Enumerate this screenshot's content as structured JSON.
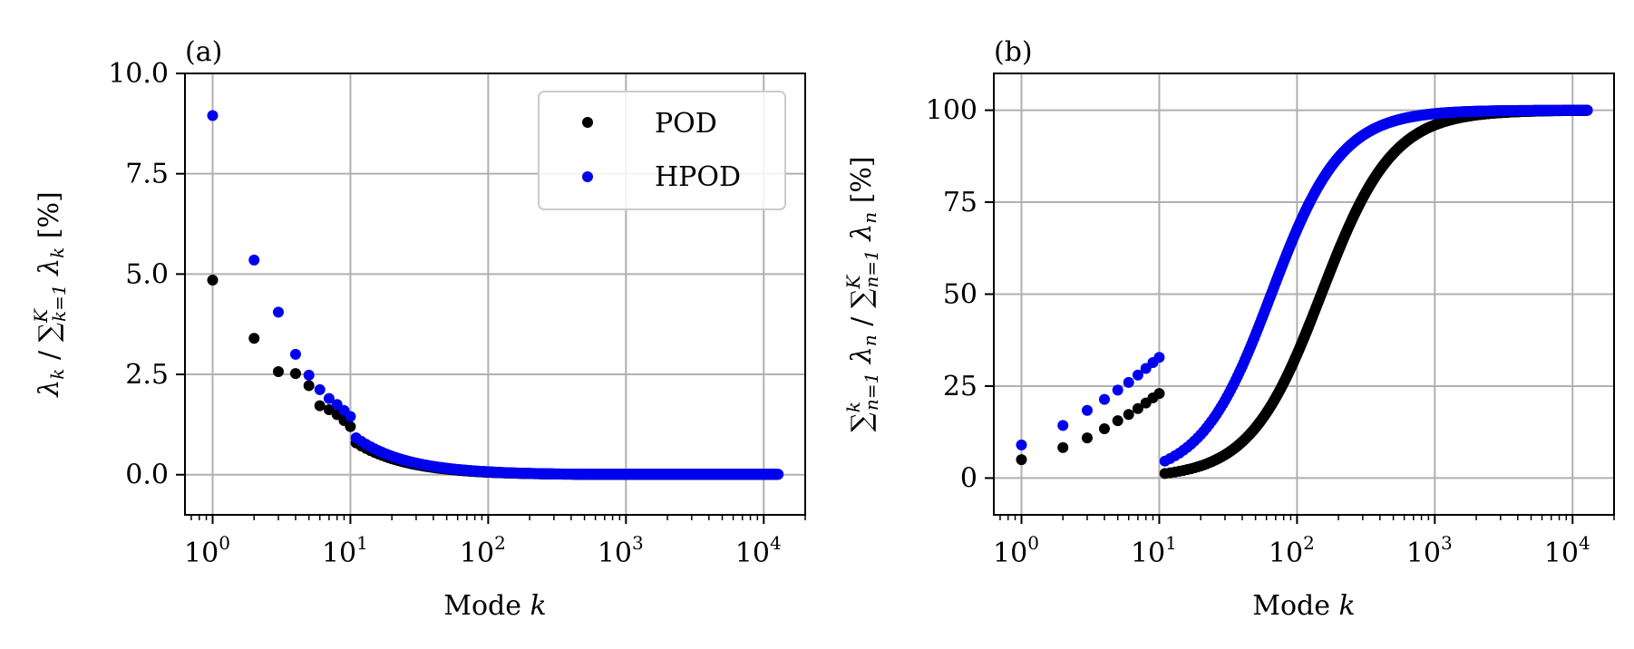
{
  "colors": {
    "POD": "#000000",
    "HPOD": "#0000ee",
    "grid": "#b0b0b0"
  },
  "chart_data": [
    {
      "id": "a",
      "type": "scatter",
      "panel_label": "(a)",
      "xlabel": "Mode k",
      "ylabel": "λk / Σ λk [%]",
      "ylabel_parts": {
        "lam": "λ",
        "k": "k",
        "slash": " / ",
        "sum": "∑",
        "sup": "K",
        "sub": "k=1",
        "lam2": " λ",
        "k2": "k",
        "unit": "  [%]"
      },
      "xscale": "log",
      "xlim": [
        0.63,
        20000
      ],
      "ylim": [
        -1.0,
        10.0
      ],
      "xticks": [
        1,
        10,
        100,
        1000,
        10000
      ],
      "xtick_labels": [
        {
          "base": "10",
          "exp": "0"
        },
        {
          "base": "10",
          "exp": "1"
        },
        {
          "base": "10",
          "exp": "2"
        },
        {
          "base": "10",
          "exp": "3"
        },
        {
          "base": "10",
          "exp": "4"
        }
      ],
      "yticks": [
        0.0,
        2.5,
        5.0,
        7.5,
        10.0
      ],
      "ytick_labels": [
        "0.0",
        "2.5",
        "5.0",
        "7.5",
        "10.0"
      ],
      "grid": true,
      "legend": "top-right",
      "series": [
        {
          "name": "POD",
          "color_key": "POD",
          "explicit": [
            [
              1,
              4.85
            ],
            [
              2,
              3.4
            ],
            [
              3,
              2.57
            ],
            [
              4,
              2.52
            ],
            [
              5,
              2.22
            ],
            [
              6,
              1.72
            ],
            [
              7,
              1.62
            ],
            [
              8,
              1.5
            ],
            [
              9,
              1.35
            ],
            [
              10,
              1.2
            ]
          ],
          "decay": {
            "a": 12.5,
            "p": 1.15,
            "from": 11,
            "to": 12800,
            "min": 0.01
          }
        },
        {
          "name": "HPOD",
          "color_key": "HPOD",
          "explicit": [
            [
              1,
              8.95
            ],
            [
              2,
              5.35
            ],
            [
              3,
              4.05
            ],
            [
              4,
              3.0
            ],
            [
              5,
              2.48
            ],
            [
              6,
              2.12
            ],
            [
              7,
              1.9
            ],
            [
              8,
              1.75
            ],
            [
              9,
              1.6
            ],
            [
              10,
              1.45
            ]
          ],
          "decay": {
            "a": 14.5,
            "p": 1.15,
            "from": 11,
            "to": 12800,
            "min": 0.01
          }
        }
      ]
    },
    {
      "id": "b",
      "type": "scatter",
      "panel_label": "(b)",
      "xlabel": "Mode k",
      "ylabel": "Σ λn / Σ λn [%]",
      "ylabel_parts": {
        "sum1": "∑",
        "sup1": "k",
        "sub1": "n=1",
        "lam1": " λ",
        "n1": "n",
        "slash": " / ",
        "sum2": "∑",
        "sup2": "K",
        "sub2": "n=1",
        "lam2": " λ",
        "n2": "n",
        "unit": "  [%]"
      },
      "xscale": "log",
      "xlim": [
        0.63,
        20000
      ],
      "ylim": [
        -10,
        110
      ],
      "xticks": [
        1,
        10,
        100,
        1000,
        10000
      ],
      "xtick_labels": [
        {
          "base": "10",
          "exp": "0"
        },
        {
          "base": "10",
          "exp": "1"
        },
        {
          "base": "10",
          "exp": "2"
        },
        {
          "base": "10",
          "exp": "3"
        },
        {
          "base": "10",
          "exp": "4"
        }
      ],
      "yticks": [
        0,
        25,
        50,
        75,
        100
      ],
      "ytick_labels": [
        "0",
        "25",
        "50",
        "75",
        "100"
      ],
      "grid": true,
      "series": [
        {
          "name": "POD",
          "color_key": "POD",
          "explicit": [
            [
              1,
              5
            ],
            [
              2,
              8.3
            ],
            [
              3,
              10.9
            ],
            [
              4,
              13.4
            ],
            [
              5,
              15.6
            ],
            [
              6,
              17.3
            ],
            [
              7,
              18.9
            ],
            [
              8,
              20.4
            ],
            [
              9,
              21.8
            ],
            [
              10,
              23.0
            ]
          ],
          "cumulative": {
            "k50": 150,
            "s": 1.08,
            "from": 11,
            "to": 12800
          }
        },
        {
          "name": "HPOD",
          "color_key": "HPOD",
          "explicit": [
            [
              1,
              9
            ],
            [
              2,
              14.3
            ],
            [
              3,
              18.4
            ],
            [
              4,
              21.4
            ],
            [
              5,
              23.9
            ],
            [
              6,
              26.0
            ],
            [
              7,
              28.0
            ],
            [
              8,
              29.8
            ],
            [
              9,
              31.4
            ],
            [
              10,
              32.8
            ]
          ],
          "cumulative": {
            "k50": 65,
            "s": 1.1,
            "from": 11,
            "to": 12800
          }
        }
      ]
    }
  ]
}
